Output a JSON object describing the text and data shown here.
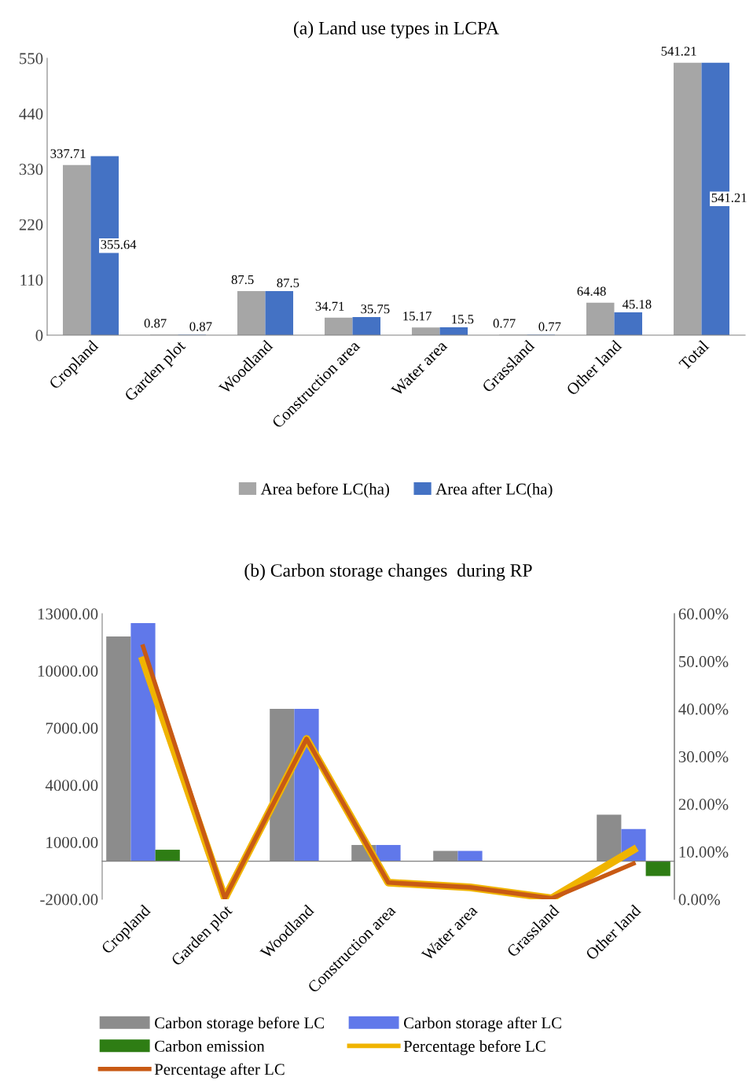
{
  "chart_data": [
    {
      "type": "bar",
      "title": "(a) Land use types in LCPA",
      "categories": [
        "Cropland",
        "Garden plot",
        "Woodland",
        "Construction area",
        "Water area",
        "Grassland",
        "Other land",
        "Total"
      ],
      "series": [
        {
          "name": "Area before LC(ha)",
          "color": "#a6a6a6",
          "values": [
            337.71,
            0.87,
            87.5,
            34.71,
            15.17,
            0.77,
            64.48,
            541.21
          ]
        },
        {
          "name": "Area after LC(ha)",
          "color": "#4472c4",
          "values": [
            355.64,
            0.87,
            87.5,
            35.75,
            15.5,
            0.77,
            45.18,
            541.21
          ]
        }
      ],
      "ylim": [
        0,
        550
      ],
      "yticks": [
        0,
        110,
        220,
        330,
        440,
        550
      ],
      "data_labels": true,
      "legend": "bottom",
      "grid": false
    },
    {
      "type": "bar",
      "title": "(b) Carbon storage changes  during RP",
      "categories": [
        "Cropland",
        "Garden plot",
        "Woodland",
        "Construction area",
        "Water area",
        "Grassland",
        "Other land"
      ],
      "series": [
        {
          "name": "Carbon storage before LC",
          "color": "#8c8c8c",
          "values": [
            11800,
            0,
            8000,
            850,
            540,
            20,
            2440
          ]
        },
        {
          "name": "Carbon storage after LC",
          "color": "#6078ea",
          "values": [
            12500,
            0,
            8000,
            850,
            540,
            null,
            1690
          ]
        },
        {
          "name": "Carbon emission",
          "color": "#2e7d14",
          "values": [
            600,
            0,
            0,
            0,
            0,
            0,
            -780
          ]
        },
        {
          "name": "Percentage before LC",
          "color": "#f0b400",
          "type": "line",
          "axis": "y2",
          "values": [
            50.2,
            0.2,
            33.7,
            3.5,
            2.5,
            0.2,
            10.4
          ]
        },
        {
          "name": "Percentage after LC",
          "color": "#c85a14",
          "type": "line",
          "axis": "y2",
          "values": [
            53.1,
            0.2,
            33.7,
            3.5,
            2.5,
            0.2,
            7.5
          ]
        }
      ],
      "ylim": [
        -2000,
        13000
      ],
      "yticks": [
        {
          "value": -2000,
          "label": "-2000.00"
        },
        {
          "value": 1000,
          "label": "1000.00"
        },
        {
          "value": 4000,
          "label": "4000.00"
        },
        {
          "value": 7000,
          "label": "7000.00"
        },
        {
          "value": 10000,
          "label": "10000.00"
        },
        {
          "value": 13000,
          "label": "13000.00"
        }
      ],
      "y2lim": [
        0,
        60
      ],
      "y2ticks": [
        {
          "value": 0,
          "label": "0.00%"
        },
        {
          "value": 10,
          "label": "10.00%"
        },
        {
          "value": 20,
          "label": "20.00%"
        },
        {
          "value": 30,
          "label": "30.00%"
        },
        {
          "value": 40,
          "label": "40.00%"
        },
        {
          "value": 50,
          "label": "50.00%"
        },
        {
          "value": 60,
          "label": "60.00%"
        }
      ],
      "legend": "bottom",
      "grid": false
    }
  ]
}
